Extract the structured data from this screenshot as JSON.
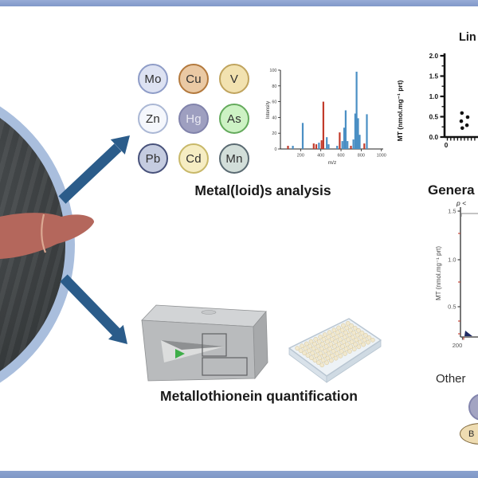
{
  "figure": {
    "metals_label": "Metal(loid)s analysis",
    "mt_label": "Metallothionein quantification",
    "other_label": "Other",
    "other_ellipse_text": "B",
    "colors": {
      "frame_bar": "#8ca4d0",
      "arrow": "#2b5c8a",
      "spectrum_blue": "#4a8fc4",
      "spectrum_red": "#c23b2b"
    },
    "elements": [
      {
        "symbol": "Mo",
        "fill": "#dde2f2",
        "border": "#8e9cc7",
        "text": "#2f2f2f"
      },
      {
        "symbol": "Cu",
        "fill": "#eac9a4",
        "border": "#b3793d",
        "text": "#2f2f2f"
      },
      {
        "symbol": "V",
        "fill": "#f2e2b0",
        "border": "#c0a45e",
        "text": "#2f2f2f"
      },
      {
        "symbol": "Zn",
        "fill": "#f5f7fc",
        "border": "#aab7d4",
        "text": "#2f2f2f"
      },
      {
        "symbol": "Hg",
        "fill": "#9e9fc0",
        "border": "#8183ab",
        "text": "#e8e8f2"
      },
      {
        "symbol": "As",
        "fill": "#cdf2c4",
        "border": "#64aa5c",
        "text": "#2f2f2f"
      },
      {
        "symbol": "Pb",
        "fill": "#c5cce0",
        "border": "#47517a",
        "text": "#2f2f2f"
      },
      {
        "symbol": "Cd",
        "fill": "#f6edc3",
        "border": "#c8b869",
        "text": "#2f2f2f"
      },
      {
        "symbol": "Mn",
        "fill": "#d2ded9",
        "border": "#5a6a72",
        "text": "#2f2f2f"
      }
    ]
  },
  "chart_data": [
    {
      "id": "mass-spectrum",
      "type": "bar",
      "title": "",
      "xlabel": "m/z",
      "ylabel": "Intensity",
      "xlim": [
        0,
        1010
      ],
      "ylim": [
        0,
        100
      ],
      "xticks": [
        200,
        400,
        600,
        800,
        1000
      ],
      "yticks": [
        0,
        20,
        40,
        60,
        80,
        100
      ],
      "series": [
        {
          "name": "red-series",
          "color": "#c23b2b",
          "points": [
            [
              75,
              4
            ],
            [
              330,
              7
            ],
            [
              355,
              6
            ],
            [
              408,
              11
            ],
            [
              425,
              60
            ],
            [
              587,
              21
            ],
            [
              698,
              4
            ],
            [
              831,
              7
            ]
          ]
        },
        {
          "name": "blue-series",
          "color": "#4a8fc4",
          "points": [
            [
              123,
              4
            ],
            [
              221,
              33
            ],
            [
              382,
              8
            ],
            [
              459,
              15
            ],
            [
              477,
              6
            ],
            [
              562,
              4
            ],
            [
              613,
              10
            ],
            [
              631,
              27
            ],
            [
              646,
              49
            ],
            [
              664,
              10
            ],
            [
              723,
              12
            ],
            [
              741,
              45
            ],
            [
              754,
              98
            ],
            [
              769,
              39
            ],
            [
              785,
              18
            ],
            [
              856,
              44
            ]
          ]
        }
      ]
    },
    {
      "id": "linearity-plot",
      "type": "scatter",
      "title": "Lin",
      "ylabel": "MT (nmol.mg⁻¹ prt)",
      "ylim": [
        0,
        2
      ],
      "ytick_labels": [
        "0.0",
        "0.5",
        "1.0",
        "1.5",
        "2.0"
      ],
      "xtick_labels": [
        "0"
      ],
      "clipped_right": true,
      "point_color": "#111111",
      "points": [
        {
          "x_frac": 0.52,
          "y": 0.59
        },
        {
          "x_frac": 0.69,
          "y": 0.49
        },
        {
          "x_frac": 0.5,
          "y": 0.39
        },
        {
          "x_frac": 0.67,
          "y": 0.29
        },
        {
          "x_frac": 0.53,
          "y": 0.22
        }
      ]
    },
    {
      "id": "general-plot",
      "type": "scatter",
      "title": "Genera",
      "annotation": "p <",
      "ylabel": "MT (nmol.mg⁻¹ prt)",
      "ytick_labels": [
        "1.5",
        "1.0",
        "0.5"
      ],
      "xtick_labels": [
        "200"
      ],
      "clipped_right": true,
      "marker": {
        "shape": "triangle",
        "color": "#1f2a63"
      }
    }
  ]
}
